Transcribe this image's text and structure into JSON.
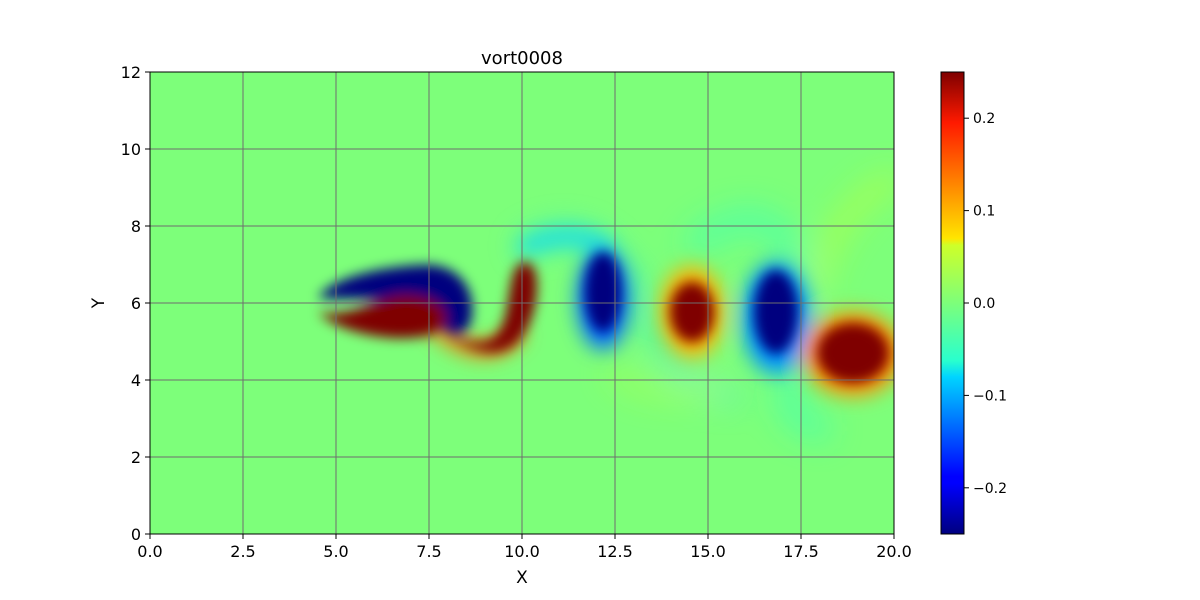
{
  "chart_data": {
    "type": "heatmap",
    "title": "vort0008",
    "xlabel": "X",
    "ylabel": "Y",
    "xlim": [
      0.0,
      20.0
    ],
    "ylim": [
      0,
      12
    ],
    "x_ticks": [
      "0.0",
      "2.5",
      "5.0",
      "7.5",
      "10.0",
      "12.5",
      "15.0",
      "17.5",
      "20.0"
    ],
    "y_ticks": [
      "0",
      "2",
      "4",
      "6",
      "8",
      "10",
      "12"
    ],
    "grid": true,
    "colormap": "jet",
    "colorbar": {
      "vmin": -0.25,
      "vmax": 0.25,
      "ticks": [
        -0.2,
        -0.1,
        0.0,
        0.1,
        0.2
      ],
      "tick_labels": [
        "−0.2",
        "−0.1",
        "0.0",
        "0.1",
        "0.2"
      ]
    },
    "vortices": [
      {
        "x": 6.0,
        "y": 6.6,
        "value": -0.25,
        "shape": "upper shear layer"
      },
      {
        "x": 7.8,
        "y": 6.3,
        "value": -0.25,
        "shape": "upper vortex"
      },
      {
        "x": 6.5,
        "y": 5.5,
        "value": 0.25,
        "shape": "lower shear layer"
      },
      {
        "x": 9.5,
        "y": 5.2,
        "value": 0.25,
        "shape": "lower curved vortex"
      },
      {
        "x": 12.1,
        "y": 6.2,
        "value": -0.25
      },
      {
        "x": 14.6,
        "y": 5.8,
        "value": 0.25
      },
      {
        "x": 16.7,
        "y": 5.6,
        "value": -0.25
      },
      {
        "x": 18.9,
        "y": 4.7,
        "value": 0.25
      }
    ]
  }
}
